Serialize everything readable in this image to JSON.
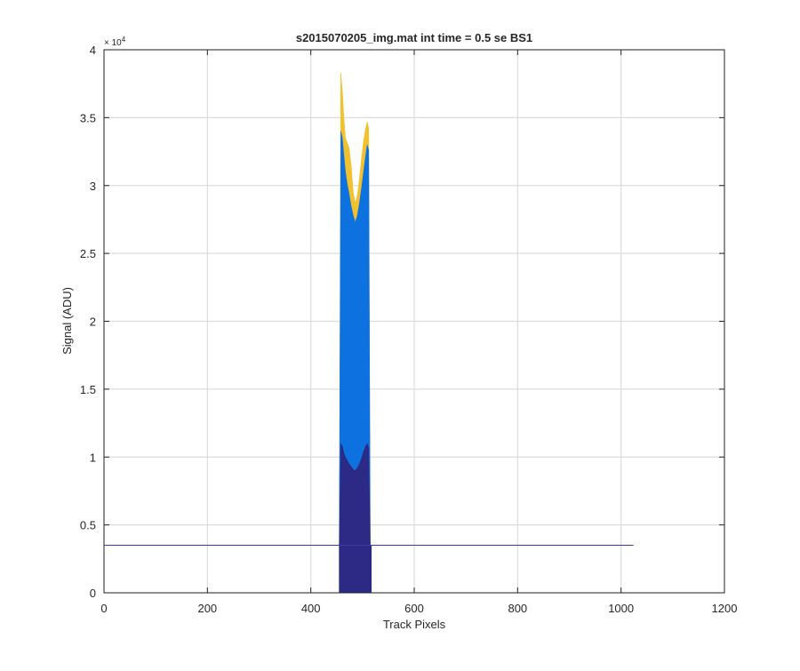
{
  "figure": {
    "background": "#ffffff"
  },
  "chart_data": {
    "type": "area",
    "title": "s2015070205_img.mat int time = 0.5 se   BS1",
    "xlabel": "Track Pixels",
    "ylabel": "Signal (ADU)",
    "y_exponent_label": "× 10",
    "y_exponent_power": "4",
    "xlim": [
      0,
      1200
    ],
    "ylim": [
      0,
      40000
    ],
    "xticks": [
      0,
      200,
      400,
      600,
      800,
      1000,
      1200
    ],
    "xtick_labels": [
      "0",
      "200",
      "400",
      "600",
      "800",
      "1000",
      "1200"
    ],
    "yticks": [
      0,
      5000,
      10000,
      15000,
      20000,
      25000,
      30000,
      35000,
      40000
    ],
    "ytick_labels": [
      "0",
      "0.5",
      "1",
      "1.5",
      "2",
      "2.5",
      "3",
      "3.5",
      "4"
    ],
    "grid": true,
    "baseline": {
      "x": [
        0,
        1024
      ],
      "y": [
        3500,
        3500
      ],
      "color": "#3a3aa8"
    },
    "series": [
      {
        "color": "#f2c12e",
        "x": [
          455,
          458,
          461,
          464,
          467,
          470,
          474,
          478,
          482,
          486,
          490,
          494,
          498,
          502,
          506,
          509,
          512,
          515,
          517
        ],
        "y": [
          3500,
          38300,
          37000,
          35000,
          33500,
          33200,
          32800,
          31500,
          29500,
          28700,
          29300,
          30500,
          32000,
          33300,
          34200,
          34700,
          34200,
          3500,
          3500
        ]
      },
      {
        "color": "#0d72e0",
        "x": [
          455,
          458,
          461,
          464,
          467,
          470,
          474,
          478,
          482,
          486,
          490,
          494,
          498,
          502,
          506,
          509,
          512,
          515,
          517
        ],
        "y": [
          3500,
          34000,
          33500,
          32200,
          31000,
          30200,
          29400,
          28500,
          27800,
          27300,
          27800,
          28700,
          29800,
          31000,
          32200,
          33000,
          32600,
          3500,
          3500
        ]
      },
      {
        "color": "#2c2a85",
        "x": [
          455,
          458,
          461,
          464,
          467,
          470,
          474,
          478,
          482,
          486,
          490,
          494,
          498,
          502,
          506,
          509,
          512,
          515,
          517
        ],
        "y": [
          3500,
          11000,
          10800,
          10300,
          10000,
          9800,
          9500,
          9300,
          9100,
          9000,
          9200,
          9500,
          9900,
          10400,
          10800,
          11000,
          10700,
          3500,
          3500
        ]
      }
    ]
  }
}
